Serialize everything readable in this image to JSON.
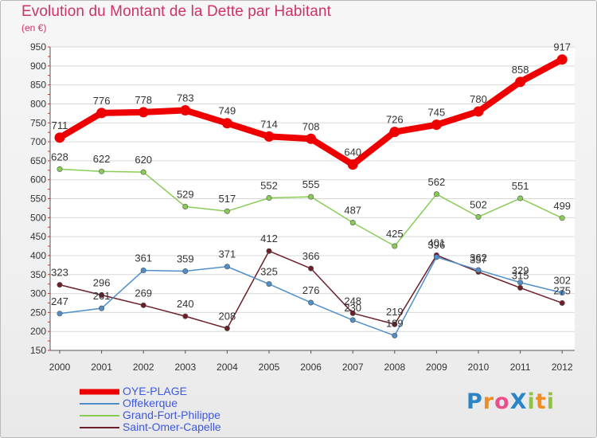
{
  "header": {
    "title": "Evolution du Montant de la Dette par Habitant",
    "subtitle": "(en €)"
  },
  "logo": {
    "text": "ProXiti",
    "letters": [
      "P",
      "r",
      "o",
      "X",
      "i",
      "t",
      "i"
    ],
    "colors": [
      "#2a85c7",
      "#f28c1f",
      "#e94f8a",
      "#2a85c7",
      "#8cc63f",
      "#f28c1f",
      "#8cc63f"
    ]
  },
  "chart_data": {
    "type": "line",
    "title": "Evolution du Montant de la Dette par Habitant",
    "subtitle": "(en €)",
    "xlabel": "",
    "ylabel": "",
    "x": [
      "2000",
      "2001",
      "2002",
      "2003",
      "2004",
      "2005",
      "2006",
      "2007",
      "2008",
      "2009",
      "2010",
      "2011",
      "2012"
    ],
    "ylim": [
      150,
      950
    ],
    "yticks": [
      150,
      200,
      250,
      300,
      350,
      400,
      450,
      500,
      550,
      600,
      650,
      700,
      750,
      800,
      850,
      900,
      950
    ],
    "grid": "horizontal",
    "legend_position": "bottom-left",
    "series": [
      {
        "name": "OYE-PLAGE",
        "color": "#ee0000",
        "values": [
          711,
          776,
          778,
          783,
          749,
          714,
          708,
          640,
          726,
          745,
          780,
          858,
          917
        ],
        "labels": [
          "711",
          "776",
          "778",
          "783",
          "749",
          "714",
          "708",
          "640",
          "726",
          "745",
          "780",
          "858",
          "917"
        ]
      },
      {
        "name": "Offekerque",
        "color": "#4f8ec9",
        "values": [
          247,
          261,
          361,
          359,
          371,
          325,
          276,
          230,
          189,
          396,
          362,
          329,
          302
        ],
        "labels": [
          "247",
          "261",
          "361",
          "359",
          "371",
          "325",
          "276",
          "230",
          "189",
          "396",
          "362",
          "329",
          "302"
        ]
      },
      {
        "name": "Grand-Fort-Philippe",
        "color": "#88cc55",
        "values": [
          628,
          622,
          620,
          529,
          517,
          552,
          555,
          487,
          425,
          562,
          502,
          551,
          499
        ],
        "labels": [
          "628",
          "622",
          "620",
          "529",
          "517",
          "552",
          "555",
          "487",
          "425",
          "562",
          "502",
          "551",
          "499"
        ]
      },
      {
        "name": "Saint-Omer-Capelle",
        "color": "#6b1f2a",
        "values": [
          323,
          296,
          269,
          240,
          208,
          412,
          366,
          248,
          219,
          401,
          357,
          315,
          275
        ],
        "labels": [
          "323",
          "296",
          "269",
          "240",
          "208",
          "412",
          "366",
          "248",
          "219",
          "401",
          "357",
          "315",
          "275"
        ]
      }
    ]
  }
}
